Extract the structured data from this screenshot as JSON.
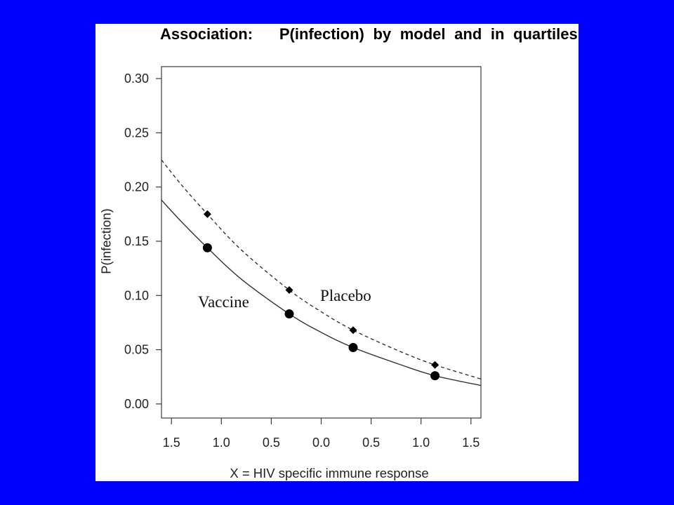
{
  "slide": {
    "background_color": "#0000ff",
    "panel_color": "#ffffff"
  },
  "chart_data": {
    "type": "line",
    "title": "Association:   P(infection) by model and in quartiles",
    "xlabel": "X = HIV specific immune response",
    "ylabel": "P(infection)",
    "xlim": [
      -1.6,
      1.6
    ],
    "ylim": [
      -0.013,
      0.311
    ],
    "x_ticks": [
      -1.5,
      -1.0,
      -0.5,
      0.0,
      0.5,
      1.0,
      1.5
    ],
    "x_tick_labels": [
      "1.5",
      "1.0",
      "0.5",
      "0.0",
      "0.5",
      "1.0",
      "1.5"
    ],
    "y_ticks": [
      0.0,
      0.05,
      0.1,
      0.15,
      0.2,
      0.25,
      0.3
    ],
    "y_tick_labels": [
      "0.00",
      "0.05",
      "0.10",
      "0.15",
      "0.20",
      "0.25",
      "0.30"
    ],
    "grid": false,
    "series": [
      {
        "name": "Vaccine",
        "dashed": false,
        "marker": "circle",
        "line_color": "#333333",
        "marker_color": "#000000",
        "curve": {
          "x": [
            -1.6,
            -1.4,
            -1.14,
            -0.8,
            -0.32,
            0.0,
            0.32,
            0.8,
            1.14,
            1.6
          ],
          "y": [
            0.188,
            0.168,
            0.144,
            0.115,
            0.083,
            0.066,
            0.052,
            0.036,
            0.026,
            0.017
          ]
        },
        "quartile_points": {
          "x": [
            -1.14,
            -0.32,
            0.32,
            1.14
          ],
          "y": [
            0.144,
            0.083,
            0.052,
            0.026
          ]
        }
      },
      {
        "name": "Placebo",
        "dashed": true,
        "marker": "diamond",
        "line_color": "#333333",
        "marker_color": "#000000",
        "curve": {
          "x": [
            -1.6,
            -1.4,
            -1.14,
            -0.8,
            -0.32,
            0.0,
            0.32,
            0.8,
            1.14,
            1.6
          ],
          "y": [
            0.225,
            0.202,
            0.175,
            0.142,
            0.105,
            0.085,
            0.068,
            0.048,
            0.036,
            0.023
          ]
        },
        "quartile_points": {
          "x": [
            -1.14,
            -0.32,
            0.32,
            1.14
          ],
          "y": [
            0.175,
            0.105,
            0.068,
            0.036
          ]
        }
      }
    ]
  }
}
